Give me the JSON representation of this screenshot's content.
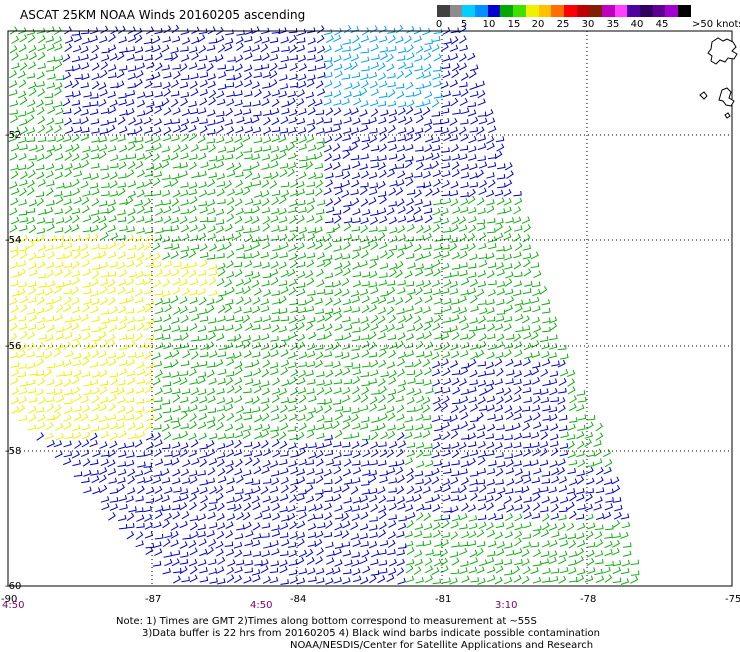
{
  "title": "ASCAT 25KM NOAA Winds 20160205 ascending",
  "legend": {
    "colors": [
      "#404040",
      "#8c8c8c",
      "#00d0ff",
      "#0090ff",
      "#0000d0",
      "#00a800",
      "#40e000",
      "#f0f000",
      "#ffc000",
      "#ff7000",
      "#ff0000",
      "#c00000",
      "#802000",
      "#c000c0",
      "#ff40ff",
      "#5000a0",
      "#300060",
      "#600090",
      "#a000d0",
      "#000000"
    ],
    "ticks": [
      "0",
      "5",
      "10",
      "15",
      "20",
      "25",
      "30",
      "35",
      "40",
      "45",
      ">50 knots"
    ],
    "units": "knots"
  },
  "map": {
    "latitudes": [
      "-52",
      "-54",
      "-56",
      "-58",
      "-60"
    ],
    "lat_ticks_partial": [
      "-52",
      "-54",
      "-56",
      "-58",
      "-60"
    ],
    "longitudes": [
      "-90",
      "-87",
      "-84",
      "-81",
      "-78",
      "-75"
    ],
    "time_labels": [
      "4:50",
      "4:50",
      "3:10"
    ],
    "icons": {
      "land": "coastline-icon",
      "barb": "wind-barb-icon"
    },
    "barb_colors": {
      "blue": "#0000d0",
      "light_blue": "#00a0ff",
      "green": "#10b010",
      "light_green": "#40e000",
      "yellow": "#f0f000"
    }
  },
  "notes": {
    "line1": "Note: 1) Times are GMT 2)Times along bottom correspond to measurement at ~55S",
    "line2": "3)Data buffer is 22 hrs from 20160205 4) Black wind barbs indicate possible contamination",
    "line3": "NOAA/NESDIS/Center for Satellite Applications and Research"
  }
}
